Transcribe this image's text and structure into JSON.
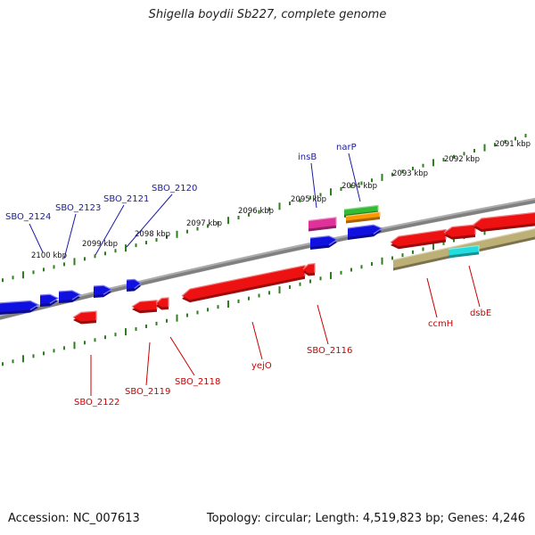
{
  "title": "Shigella boydii Sb227, complete genome",
  "footer": {
    "accession": "Accession: NC_007613",
    "topology": "Topology: circular; Length: 4,519,823 bp; Genes: 4,246"
  },
  "colors": {
    "background": "#ffffff",
    "backbone": "#808080",
    "tick": "#2e7d1f",
    "forward_label": "#1a1aa8",
    "reverse_label": "#cc0000",
    "forward_gene": "#1010e0",
    "reverse_gene": "#ee1111",
    "insB": "#e0309a",
    "narP_a": "#33bb33",
    "narP_b": "#ff9900",
    "dsbE": "#22dddd",
    "ccm_track": "#bdb076"
  },
  "kbp_labels": [
    "2091 kbp",
    "2092 kbp",
    "2093 kbp",
    "2094 kbp",
    "2095 kbp",
    "2096 kbp",
    "2097 kbp",
    "2098 kbp",
    "2099 kbp",
    "2100 kbp"
  ],
  "forward_genes": [
    "SBO_2124",
    "SBO_2123",
    "SBO_2121",
    "SBO_2120",
    "insB",
    "narP"
  ],
  "reverse_genes": [
    "SBO_2122",
    "SBO_2119",
    "SBO_2118",
    "yejO",
    "SBO_2116",
    "ccmH",
    "dsbE"
  ]
}
